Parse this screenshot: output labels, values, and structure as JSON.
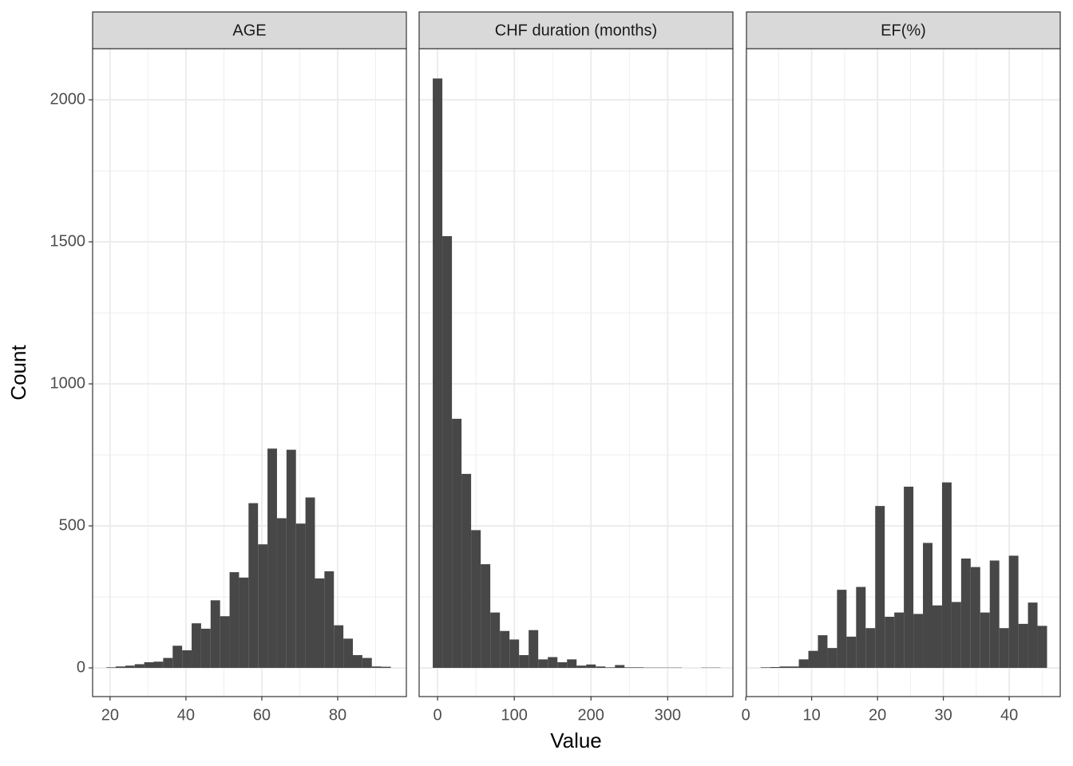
{
  "chart_data": [
    {
      "type": "histogram",
      "title": "AGE",
      "ylabel": "Count",
      "bins": [
        19,
        21.5,
        24,
        26.5,
        29,
        31.5,
        34,
        36.5,
        39,
        41.5,
        44,
        46.5,
        49,
        51.5,
        54,
        56.5,
        59,
        61.5,
        64,
        66.5,
        69,
        71.5,
        74,
        76.5,
        79,
        81.5,
        84,
        86.5,
        89,
        91.5,
        94
      ],
      "values": [
        2,
        5,
        8,
        13,
        20,
        22,
        35,
        78,
        62,
        157,
        138,
        238,
        182,
        337,
        318,
        580,
        435,
        772,
        527,
        768,
        508,
        600,
        315,
        340,
        150,
        103,
        45,
        35,
        5,
        4
      ],
      "xlim": [
        15.4,
        98.1
      ],
      "xticks": [
        20,
        40,
        60,
        80
      ],
      "ylim": [
        -101,
        2180
      ],
      "yticks": [
        0,
        500,
        1000,
        1500,
        2000
      ],
      "color": "#474747",
      "grid": true
    },
    {
      "type": "histogram",
      "title": "CHF duration (months)",
      "xlabel": "Value",
      "bins": [
        -6.25,
        6.25,
        18.75,
        31.25,
        43.75,
        56.25,
        68.75,
        81.25,
        93.75,
        106.25,
        118.75,
        131.25,
        143.75,
        156.25,
        168.75,
        181.25,
        193.75,
        206.25,
        218.75,
        231.25,
        243.75,
        256.25,
        268.75,
        281.25,
        293.75,
        306.25,
        318.75,
        331.25,
        343.75,
        356.25,
        368.75
      ],
      "values": [
        2075,
        1520,
        877,
        683,
        485,
        365,
        195,
        130,
        100,
        45,
        133,
        30,
        38,
        20,
        30,
        8,
        12,
        5,
        2,
        10,
        2,
        2,
        1,
        1,
        1,
        1,
        0,
        0,
        1,
        1
      ],
      "xlim": [
        -24,
        385
      ],
      "xticks": [
        0,
        100,
        200,
        300
      ],
      "ylim": [
        -101,
        2180
      ],
      "yticks": [
        0,
        500,
        1000,
        1500,
        2000
      ],
      "color": "#474747",
      "grid": true
    },
    {
      "type": "histogram",
      "title": "EF(%)",
      "bins": [
        2.25,
        3.7,
        5.15,
        6.6,
        8.05,
        9.5,
        10.95,
        12.4,
        13.85,
        15.3,
        16.75,
        18.2,
        19.65,
        21.1,
        22.55,
        24,
        25.45,
        26.9,
        28.35,
        29.8,
        31.25,
        32.7,
        34.15,
        35.6,
        37.05,
        38.5,
        39.95,
        41.4,
        42.85,
        44.3,
        45.75
      ],
      "values": [
        2,
        3,
        5,
        5,
        30,
        60,
        115,
        70,
        275,
        110,
        285,
        140,
        570,
        180,
        195,
        638,
        190,
        440,
        220,
        653,
        232,
        385,
        355,
        195,
        378,
        140,
        395,
        155,
        230,
        148
      ],
      "xlim": [
        0.1,
        47.75
      ],
      "xticks": [
        0,
        10,
        20,
        30,
        40
      ],
      "ylim": [
        -101,
        2180
      ],
      "yticks": [
        0,
        500,
        1000,
        1500,
        2000
      ],
      "color": "#474747",
      "grid": true
    }
  ]
}
